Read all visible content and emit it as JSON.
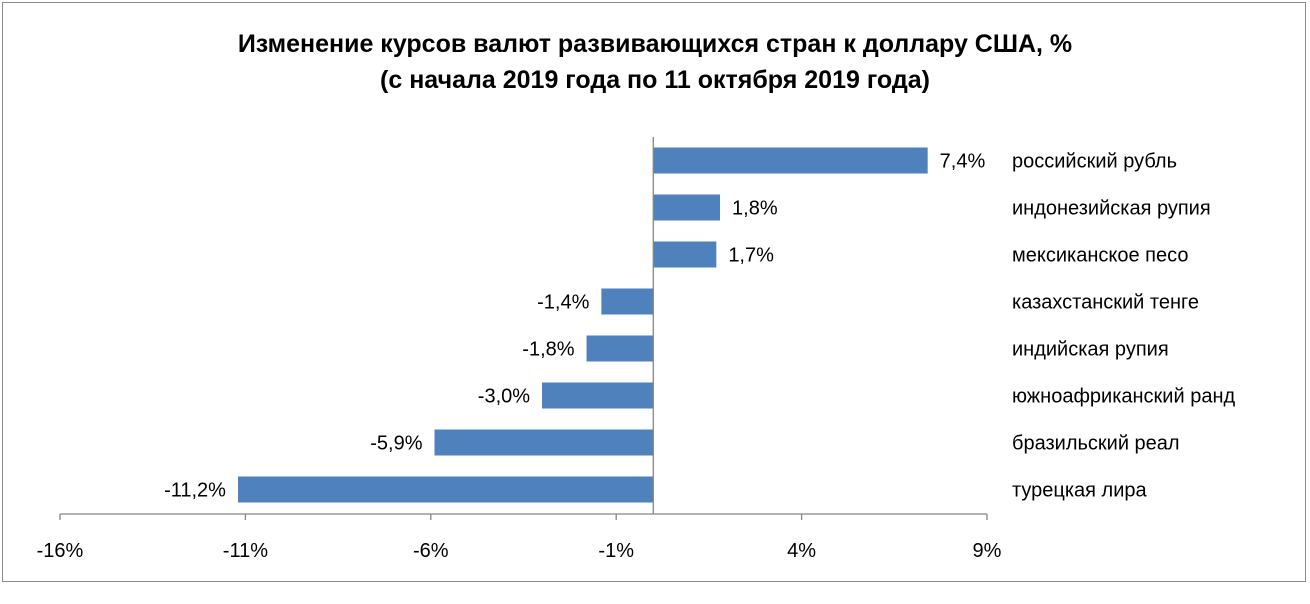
{
  "chart_data": {
    "type": "bar",
    "orientation": "horizontal",
    "title": "Изменение курсов валют развивающихся стран к доллару США, %",
    "subtitle": "(с начала 2019 года по 11 октября 2019 года)",
    "categories": [
      "российский рубль",
      "индонезийская рупия",
      "мексиканское песо",
      "казахстанский тенге",
      "индийская рупия",
      "южноафриканский ранд",
      "бразильский реал",
      "турецкая лира"
    ],
    "values": [
      7.4,
      1.8,
      1.7,
      -1.4,
      -1.8,
      -3.0,
      -5.9,
      -11.2
    ],
    "value_labels": [
      "7,4%",
      "1,8%",
      "1,7%",
      "-1,4%",
      "-1,8%",
      "-3,0%",
      "-5,9%",
      "-11,2%"
    ],
    "x_ticks": [
      -16,
      -11,
      -6,
      -1,
      4,
      9
    ],
    "x_tick_labels": [
      "-16%",
      "-11%",
      "-6%",
      "-1%",
      "4%",
      "9%"
    ],
    "xlim": [
      -16,
      9
    ],
    "xlabel": "",
    "ylabel": "",
    "grid": false,
    "legend": false,
    "colors": {
      "bar": "#4f81bd",
      "axis": "#868686",
      "border": "#8c8c8c"
    }
  }
}
